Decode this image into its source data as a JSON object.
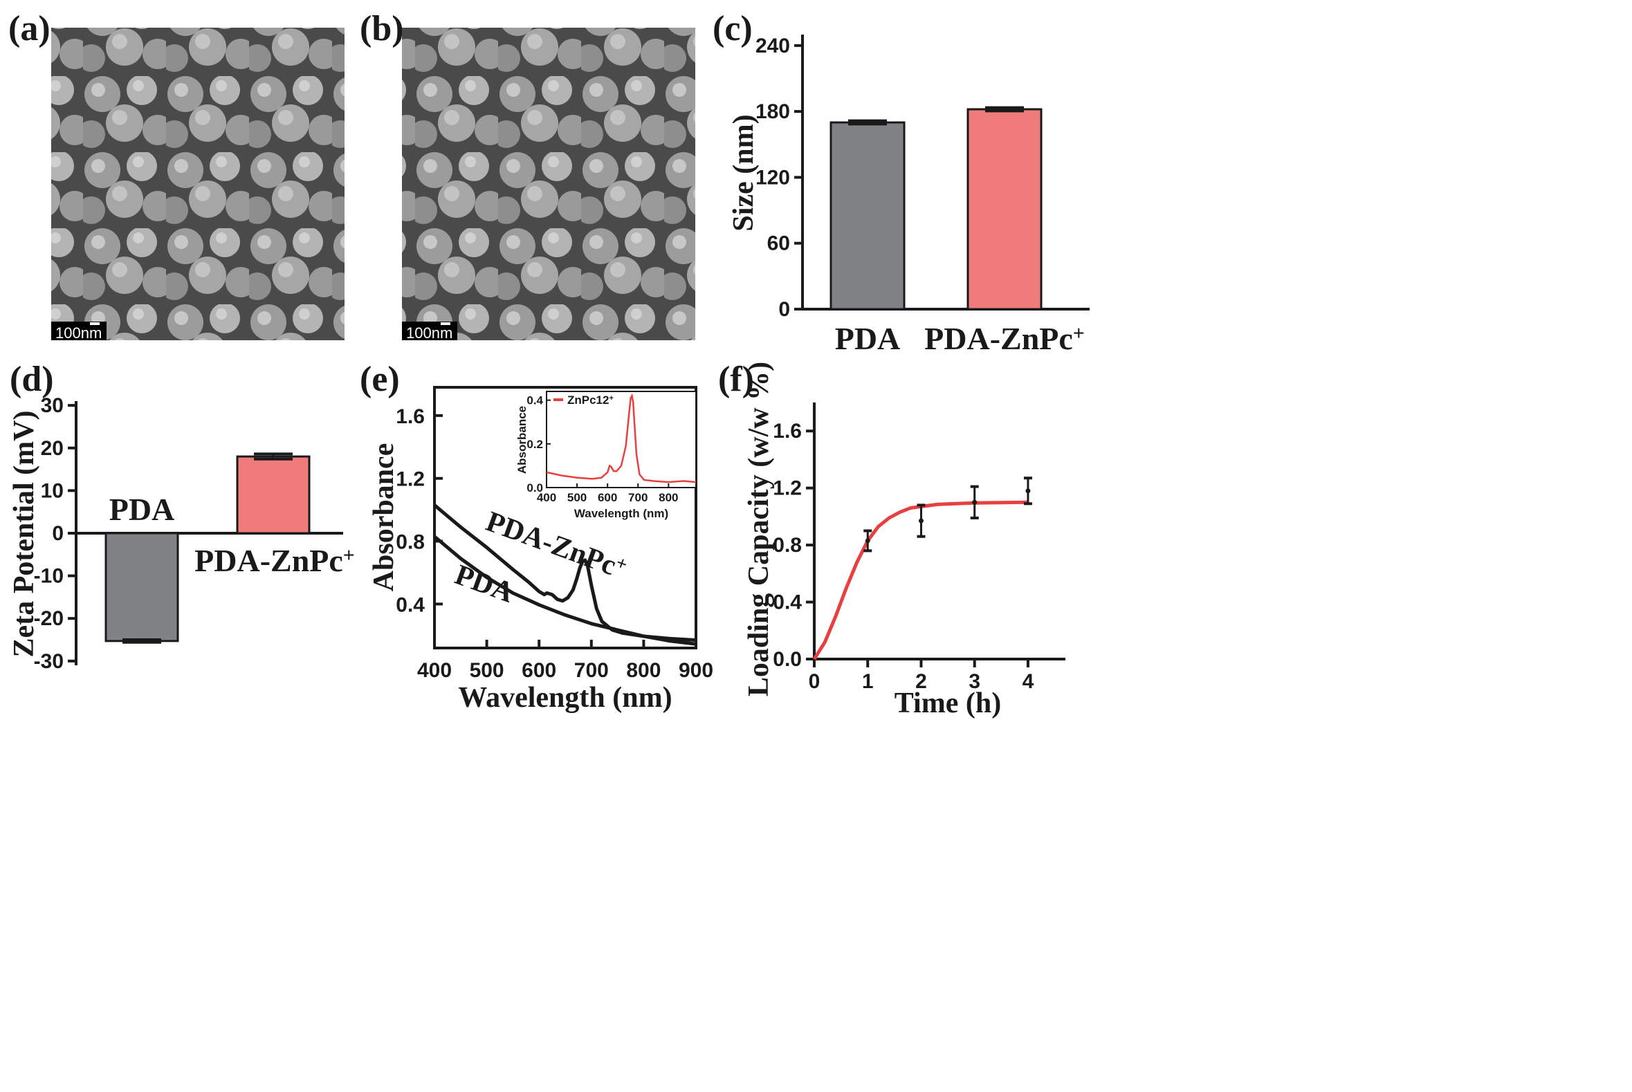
{
  "panel_labels": [
    "(a)",
    "(b)",
    "(c)",
    "(d)",
    "(e)",
    "(f)"
  ],
  "sem": [
    {
      "scale_bar": "100nm"
    },
    {
      "scale_bar": "100nm"
    }
  ],
  "colors": {
    "pda": "#808285",
    "pda_znpc": "#f07b7b",
    "line_dark": "#1a1a1a",
    "line_red": "#e8403f"
  },
  "chart_data": [
    {
      "id": "c",
      "type": "bar",
      "categories": [
        "PDA",
        "PDA-ZnPc+"
      ],
      "values": [
        170,
        182
      ],
      "errors": [
        1.5,
        1.5
      ],
      "ylabel": "Size (nm)",
      "ylim": [
        0,
        250
      ],
      "yticks": [
        0,
        60,
        120,
        180,
        240
      ]
    },
    {
      "id": "d",
      "type": "bar",
      "categories": [
        "PDA",
        "PDA-ZnPc+"
      ],
      "values": [
        -25.3,
        18
      ],
      "errors": [
        0.3,
        0.6
      ],
      "ylabel": "Zeta Potential (mV)",
      "ylim": [
        -31,
        31
      ],
      "yticks": [
        -30,
        -20,
        -10,
        0,
        10,
        20,
        30
      ]
    },
    {
      "id": "e",
      "type": "line",
      "xlabel": "Wavelength (nm)",
      "ylabel": "Absorbance",
      "xlim": [
        400,
        900
      ],
      "ylim": [
        0.12,
        1.78
      ],
      "xticks": [
        400,
        500,
        600,
        700,
        800,
        900
      ],
      "yticks": [
        0.4,
        0.8,
        1.2,
        1.6
      ],
      "series": [
        {
          "name": "PDA-ZnPc+",
          "x": [
            400,
            450,
            500,
            550,
            580,
            600,
            610,
            615,
            625,
            635,
            645,
            655,
            665,
            672,
            678,
            683,
            688,
            693,
            700,
            710,
            720,
            740,
            760,
            800,
            850,
            900
          ],
          "y": [
            1.03,
            0.89,
            0.76,
            0.62,
            0.54,
            0.48,
            0.46,
            0.47,
            0.46,
            0.43,
            0.42,
            0.44,
            0.49,
            0.56,
            0.63,
            0.67,
            0.68,
            0.64,
            0.52,
            0.37,
            0.29,
            0.235,
            0.215,
            0.195,
            0.18,
            0.17
          ]
        },
        {
          "name": "PDA",
          "x": [
            400,
            450,
            500,
            550,
            600,
            650,
            700,
            750,
            800,
            850,
            900
          ],
          "y": [
            0.83,
            0.69,
            0.57,
            0.47,
            0.395,
            0.33,
            0.275,
            0.235,
            0.195,
            0.165,
            0.145
          ]
        }
      ],
      "annotations": [
        {
          "text": "PDA-ZnPc",
          "superscript": "+",
          "color": "#e8403f"
        },
        {
          "text": "PDA",
          "color": "#1a1a1a"
        }
      ],
      "inset": {
        "type": "line",
        "xlabel": "Wavelength (nm)",
        "ylabel": "Absorbance",
        "xlim": [
          400,
          890
        ],
        "ylim": [
          0,
          0.44
        ],
        "xticks": [
          400,
          500,
          600,
          700,
          800
        ],
        "yticks": [
          0.0,
          0.2,
          0.4
        ],
        "ytick_labels": [
          "0.0",
          "0.2",
          "0.4"
        ],
        "legend": "ZnPc12",
        "legend_superscript": "+",
        "series": [
          {
            "name": "ZnPc12+",
            "x": [
              400,
              450,
              500,
              550,
              580,
              600,
              607,
              612,
              620,
              630,
              645,
              660,
              670,
              676,
              680,
              684,
              688,
              695,
              705,
              720,
              750,
              800,
              850,
              890
            ],
            "y": [
              0.07,
              0.055,
              0.045,
              0.04,
              0.045,
              0.07,
              0.1,
              0.095,
              0.075,
              0.075,
              0.1,
              0.19,
              0.33,
              0.41,
              0.42,
              0.39,
              0.3,
              0.15,
              0.06,
              0.035,
              0.03,
              0.025,
              0.03,
              0.025
            ]
          }
        ]
      }
    },
    {
      "id": "f",
      "type": "line",
      "xlabel": "Time (h)",
      "ylabel": "Loading Capacity (w/w %)",
      "xlim": [
        0,
        4.7
      ],
      "ylim": [
        0,
        1.8
      ],
      "xticks": [
        0,
        1,
        2,
        3,
        4
      ],
      "yticks": [
        0.0,
        0.4,
        0.8,
        1.2,
        1.6
      ],
      "ytick_labels": [
        "0.0",
        "0.4",
        "0.8",
        "1.2",
        "1.6"
      ],
      "fit": {
        "name": "fit",
        "x": [
          0,
          0.2,
          0.4,
          0.6,
          0.8,
          1.0,
          1.2,
          1.4,
          1.6,
          1.8,
          2.0,
          2.3,
          2.6,
          3.0,
          3.5,
          4.0
        ],
        "y": [
          0,
          0.12,
          0.3,
          0.5,
          0.68,
          0.83,
          0.93,
          0.99,
          1.03,
          1.06,
          1.07,
          1.085,
          1.09,
          1.095,
          1.098,
          1.1
        ]
      },
      "points": [
        {
          "x": 1,
          "y": 0.83,
          "err": 0.07
        },
        {
          "x": 2,
          "y": 0.97,
          "err": 0.11
        },
        {
          "x": 3,
          "y": 1.1,
          "err": 0.11
        },
        {
          "x": 4,
          "y": 1.18,
          "err": 0.09
        }
      ]
    }
  ]
}
